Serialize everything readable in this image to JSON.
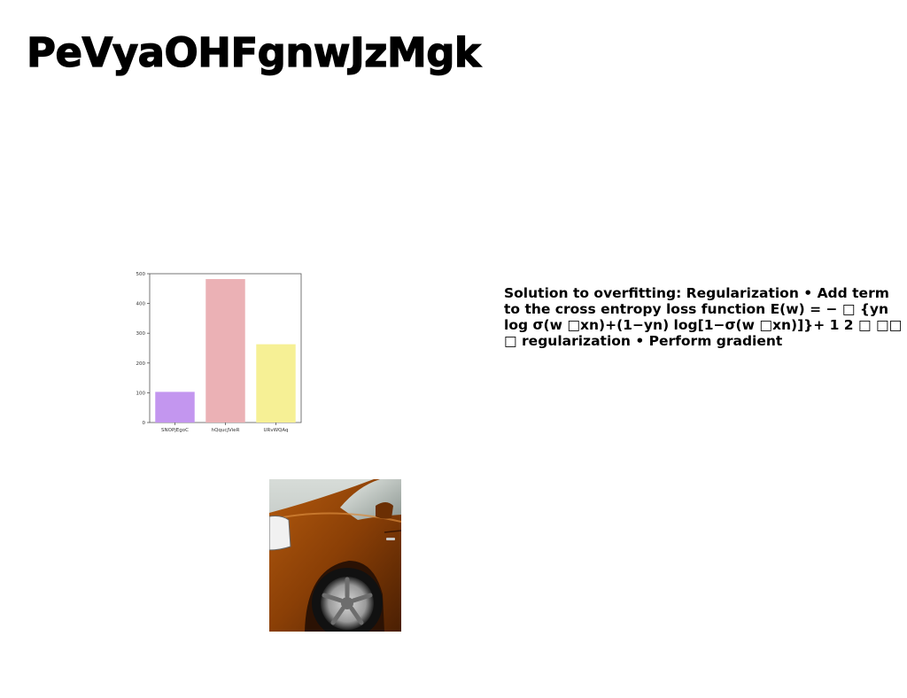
{
  "slide": {
    "title": "PeVyaOHFgnwJzMgk",
    "body_text": "Solution to overfitting: Regularization • Add term to the cross entropy loss function E(w) = − □ {yn log σ(w □xn)+(1−yn) log[1−σ(w □xn)]}+ 1 2 □ □□ □ regularization • Perform gradient",
    "photo_subject": "orange-car-photo"
  },
  "chart_data": {
    "type": "bar",
    "categories": [
      "SNOPjEgoC",
      "hQqucJVieR",
      "URvWQAq"
    ],
    "values": [
      103,
      482,
      263
    ],
    "colors": [
      "#c396ef",
      "#ebb1b5",
      "#f6f095"
    ],
    "ylim": [
      0,
      500
    ],
    "yticks": [
      0,
      100,
      200,
      300,
      400,
      500
    ],
    "title": "",
    "xlabel": "",
    "ylabel": "",
    "grid": false,
    "legend": "none"
  }
}
